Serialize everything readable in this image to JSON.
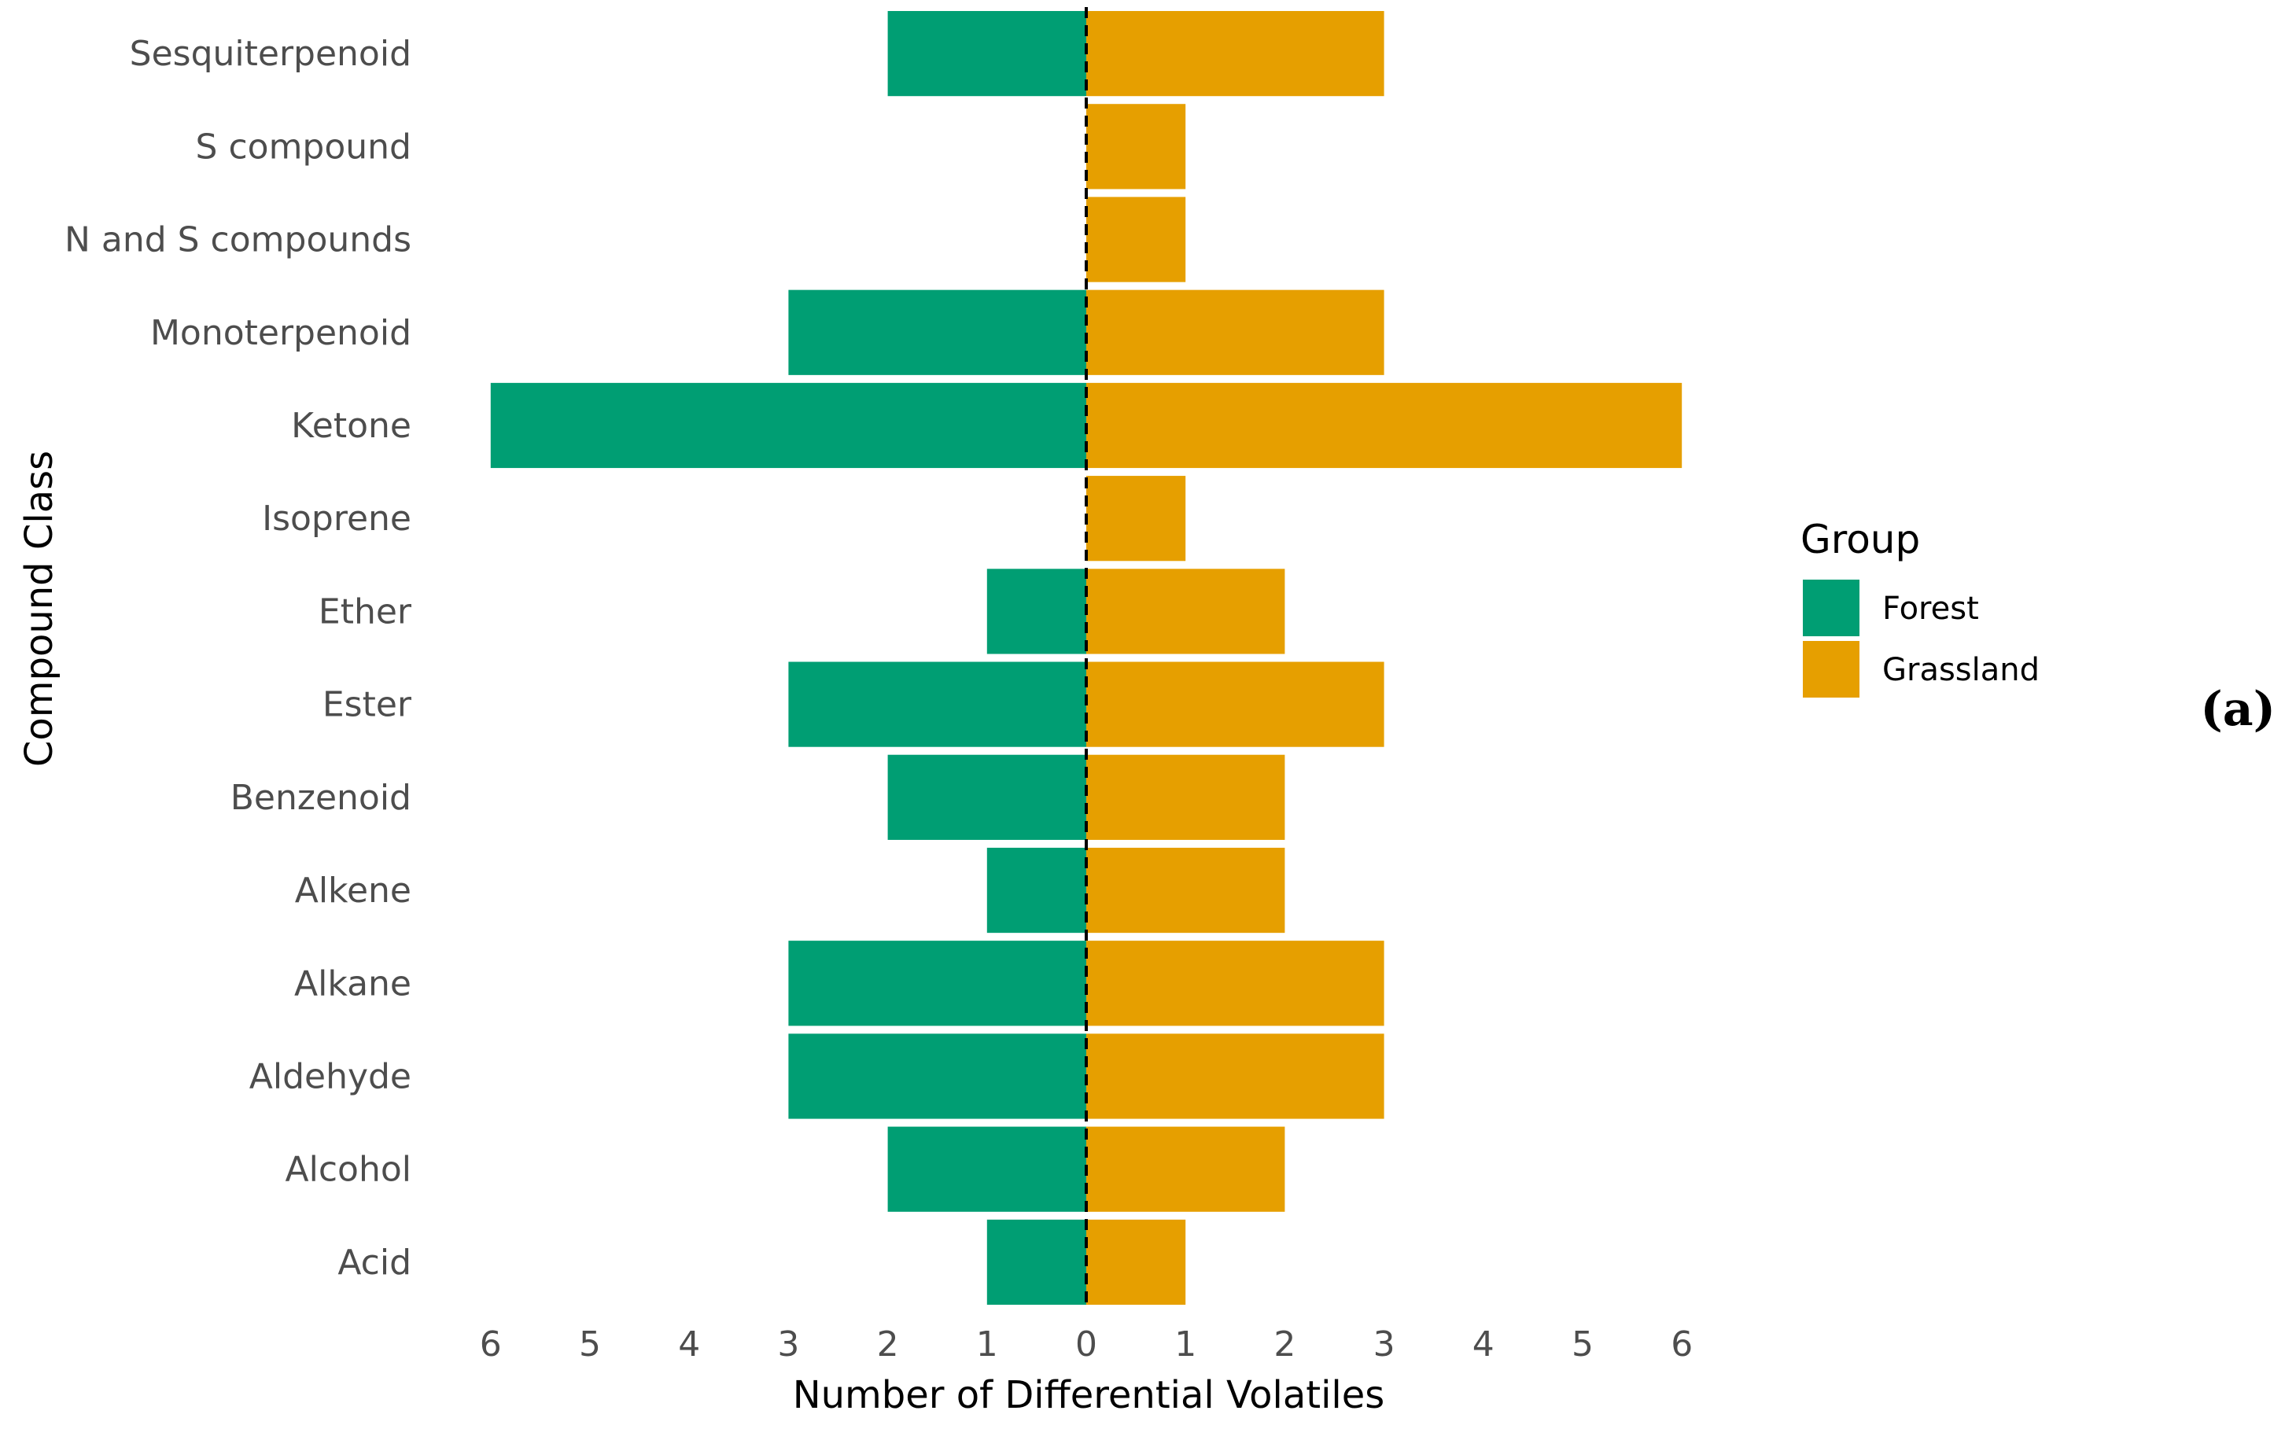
{
  "chart_data": {
    "type": "bar",
    "orientation": "horizontal",
    "layout": "diverging",
    "categories": [
      "Sesquiterpenoid",
      "S compound",
      "N and S compounds",
      "Monoterpenoid",
      "Ketone",
      "Isoprene",
      "Ether",
      "Ester",
      "Benzenoid",
      "Alkene",
      "Alkane",
      "Aldehyde",
      "Alcohol",
      "Acid"
    ],
    "series": [
      {
        "name": "Forest",
        "color": "#009E73",
        "side": "left",
        "values": [
          2,
          0,
          0,
          3,
          6,
          0,
          1,
          3,
          2,
          1,
          3,
          3,
          2,
          1
        ]
      },
      {
        "name": "Grassland",
        "color": "#E69F00",
        "side": "right",
        "values": [
          3,
          1,
          1,
          3,
          6,
          1,
          2,
          3,
          2,
          2,
          3,
          3,
          2,
          1
        ]
      }
    ],
    "xlabel": "Number of Differential Volatiles",
    "ylabel": "Compound Class",
    "xlim": [
      -6,
      6
    ],
    "x_ticks": [
      -6,
      -5,
      -4,
      -3,
      -2,
      -1,
      0,
      1,
      2,
      3,
      4,
      5,
      6
    ],
    "x_tick_labels": [
      "6",
      "5",
      "4",
      "3",
      "2",
      "1",
      "0",
      "1",
      "2",
      "3",
      "4",
      "5",
      "6"
    ],
    "zero_line": "dashed",
    "grid": false,
    "legend": {
      "title": "Group",
      "position": "right"
    },
    "panel_label": "(a)"
  }
}
